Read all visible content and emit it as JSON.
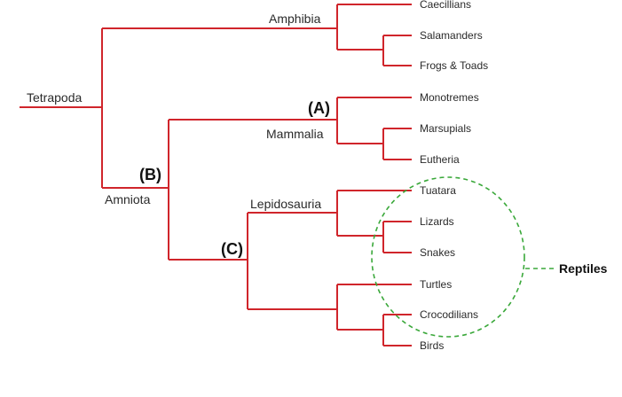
{
  "colors": {
    "branch": "#d0252b",
    "circle": "#3aa83a",
    "text": "#2a2a2a"
  },
  "labels": {
    "tetrapoda": "Tetrapoda",
    "amphibia": "Amphibia",
    "amniota": "Amniota",
    "mammalia": "Mammalia",
    "lepidosauria": "Lepidosauria"
  },
  "markers": {
    "a": "(A)",
    "b": "(B)",
    "c": "(C)"
  },
  "leaves": [
    "Caecillians",
    "Salamanders",
    "Frogs & Toads",
    "Monotremes",
    "Marsupials",
    "Eutheria",
    "Tuatara",
    "Lizards",
    "Snakes",
    "Turtles",
    "Crocodilians",
    "Birds"
  ],
  "group": {
    "name": "Reptiles"
  }
}
